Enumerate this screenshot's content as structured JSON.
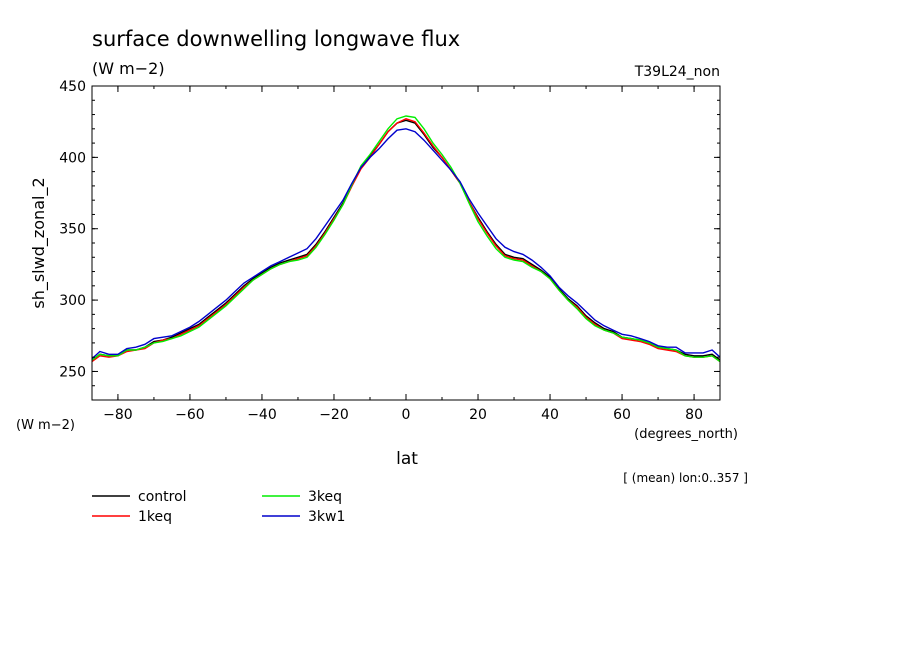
{
  "chart_data": {
    "type": "line",
    "title": "surface downwelling longwave flux",
    "subtitle": "(W m−2)",
    "run_label": "T39L24_non",
    "ylabel": "sh_slwd_zonal_2",
    "yunits": "(W m−2)",
    "xlabel": "lat",
    "xunits": "(degrees_north)",
    "note": "[ (mean) lon:0..357 ]",
    "xlim": [
      -87.2,
      87.2
    ],
    "ylim": [
      230,
      450
    ],
    "xticks": [
      -80,
      -60,
      -40,
      -20,
      0,
      20,
      40,
      60,
      80
    ],
    "xtick_labels": [
      "−80",
      "−60",
      "−40",
      "−20",
      "0",
      "20",
      "40",
      "60",
      "80"
    ],
    "yticks": [
      250,
      300,
      350,
      400,
      450
    ],
    "ytick_labels": [
      "250",
      "300",
      "350",
      "400",
      "450"
    ],
    "grid": false,
    "legend_position": "bottom-left",
    "x": [
      -87.2,
      -85,
      -82.5,
      -80,
      -77.5,
      -75,
      -72.5,
      -70,
      -67.5,
      -65,
      -62.5,
      -60,
      -57.5,
      -55,
      -52.5,
      -50,
      -47.5,
      -45,
      -42.5,
      -40,
      -37.5,
      -35,
      -32.5,
      -30,
      -27.5,
      -25,
      -22.5,
      -20,
      -17.5,
      -15,
      -12.5,
      -10,
      -7.5,
      -5,
      -2.5,
      0,
      2.5,
      5,
      7.5,
      10,
      12.5,
      15,
      17.5,
      20,
      22.5,
      25,
      27.5,
      30,
      32.5,
      35,
      37.5,
      40,
      42.5,
      45,
      47.5,
      50,
      52.5,
      55,
      57.5,
      60,
      62.5,
      65,
      67.5,
      70,
      72.5,
      75,
      77.5,
      80,
      82.5,
      85,
      87.2
    ],
    "series": [
      {
        "name": "control",
        "color": "#000000",
        "values": [
          258,
          262,
          261,
          261,
          265,
          265,
          267,
          271,
          272,
          274,
          277,
          280,
          283,
          288,
          293,
          298,
          304,
          310,
          315,
          319,
          323,
          326,
          328,
          330,
          332,
          339,
          348,
          358,
          368,
          381,
          393,
          401,
          409,
          418,
          424,
          426,
          424,
          416,
          407,
          400,
          391,
          382,
          369,
          358,
          348,
          339,
          332,
          330,
          329,
          325,
          321,
          316,
          308,
          301,
          296,
          289,
          284,
          280,
          278,
          274,
          273,
          272,
          270,
          267,
          266,
          265,
          262,
          261,
          261,
          262,
          258
        ]
      },
      {
        "name": "1keq",
        "color": "#ff0000",
        "values": [
          257,
          261,
          260,
          261,
          264,
          265,
          266,
          270,
          272,
          273,
          276,
          279,
          282,
          287,
          292,
          297,
          303,
          309,
          314,
          318,
          322,
          325,
          327,
          329,
          331,
          338,
          347,
          357,
          367,
          380,
          392,
          400,
          409,
          418,
          424,
          427,
          425,
          417,
          408,
          400,
          391,
          382,
          369,
          357,
          347,
          338,
          331,
          329,
          328,
          324,
          320,
          315,
          307,
          300,
          295,
          288,
          283,
          279,
          277,
          273,
          272,
          271,
          269,
          266,
          265,
          264,
          261,
          260,
          260,
          261,
          257
        ]
      },
      {
        "name": "3keq",
        "color": "#00ee00",
        "values": [
          258,
          262,
          261,
          261,
          265,
          265,
          267,
          270,
          271,
          273,
          275,
          278,
          281,
          286,
          291,
          296,
          302,
          308,
          314,
          318,
          322,
          325,
          327,
          328,
          330,
          337,
          346,
          356,
          367,
          381,
          394,
          402,
          411,
          420,
          427,
          429,
          428,
          420,
          410,
          402,
          393,
          382,
          368,
          355,
          345,
          336,
          330,
          328,
          327,
          323,
          320,
          315,
          307,
          300,
          294,
          287,
          282,
          279,
          277,
          274,
          273,
          272,
          270,
          267,
          266,
          265,
          261,
          260,
          260,
          261,
          257
        ]
      },
      {
        "name": "3kw1",
        "color": "#0000cc",
        "values": [
          259,
          264,
          262,
          262,
          266,
          267,
          269,
          273,
          274,
          275,
          278,
          281,
          285,
          290,
          295,
          300,
          306,
          312,
          316,
          320,
          324,
          327,
          330,
          333,
          336,
          343,
          352,
          361,
          370,
          382,
          393,
          400,
          406,
          413,
          419,
          420,
          418,
          412,
          405,
          398,
          391,
          383,
          371,
          361,
          352,
          343,
          337,
          334,
          332,
          328,
          323,
          317,
          309,
          303,
          298,
          292,
          286,
          282,
          279,
          276,
          275,
          273,
          271,
          268,
          267,
          267,
          263,
          263,
          263,
          265,
          260
        ]
      }
    ]
  }
}
